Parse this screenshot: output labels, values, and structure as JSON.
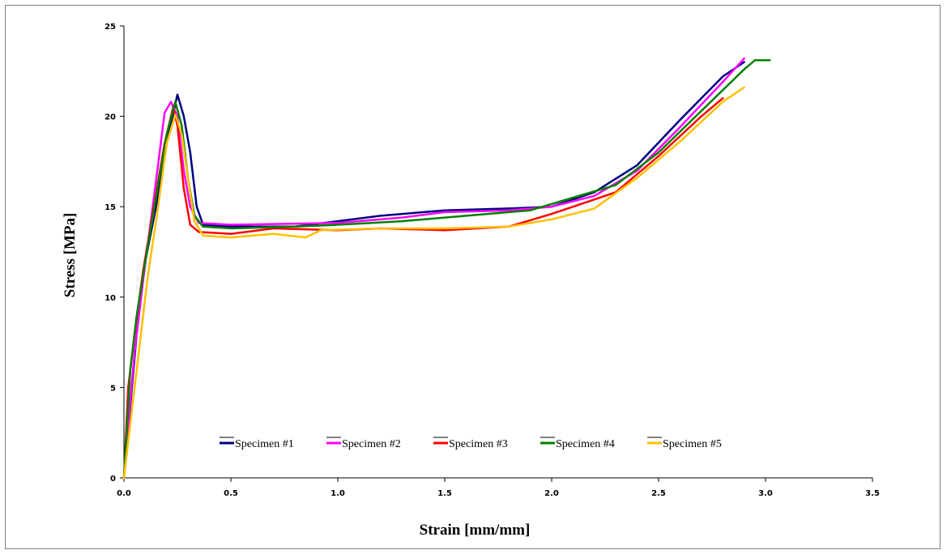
{
  "chart_data": {
    "type": "line",
    "title": "",
    "xlabel": "Strain [mm/mm]",
    "ylabel": "Stress [MPa]",
    "xlim": [
      0,
      3.5
    ],
    "ylim": [
      0,
      25
    ],
    "xticks": [
      "0.0",
      "0.5",
      "1.0",
      "1.5",
      "2.0",
      "2.5",
      "3.0",
      "3.5"
    ],
    "yticks": [
      "0",
      "5",
      "10",
      "15",
      "20",
      "25"
    ],
    "grid": false,
    "legend_position": "bottom-center",
    "series": [
      {
        "name": "Specimen #1",
        "color": "#000080",
        "points": [
          [
            0,
            0
          ],
          [
            0.03,
            4
          ],
          [
            0.06,
            8
          ],
          [
            0.1,
            12
          ],
          [
            0.15,
            15
          ],
          [
            0.2,
            18.5
          ],
          [
            0.25,
            21.2
          ],
          [
            0.28,
            20
          ],
          [
            0.31,
            18
          ],
          [
            0.34,
            15
          ],
          [
            0.37,
            14
          ],
          [
            0.5,
            13.9
          ],
          [
            0.8,
            13.9
          ],
          [
            1.0,
            14.2
          ],
          [
            1.2,
            14.5
          ],
          [
            1.5,
            14.8
          ],
          [
            1.8,
            14.9
          ],
          [
            2.0,
            15
          ],
          [
            2.2,
            15.8
          ],
          [
            2.4,
            17.3
          ],
          [
            2.6,
            19.8
          ],
          [
            2.8,
            22.2
          ],
          [
            2.9,
            23
          ]
        ]
      },
      {
        "name": "Specimen #2",
        "color": "#ff00ff",
        "points": [
          [
            0,
            0
          ],
          [
            0.02,
            3
          ],
          [
            0.05,
            7
          ],
          [
            0.09,
            11
          ],
          [
            0.14,
            15.5
          ],
          [
            0.19,
            20.2
          ],
          [
            0.22,
            20.8
          ],
          [
            0.25,
            20
          ],
          [
            0.28,
            17
          ],
          [
            0.31,
            15
          ],
          [
            0.35,
            14.1
          ],
          [
            0.5,
            14
          ],
          [
            1.0,
            14.1
          ],
          [
            1.3,
            14.4
          ],
          [
            1.5,
            14.7
          ],
          [
            1.8,
            14.8
          ],
          [
            2.0,
            15
          ],
          [
            2.2,
            15.6
          ],
          [
            2.4,
            17
          ],
          [
            2.6,
            19.4
          ],
          [
            2.8,
            21.9
          ],
          [
            2.9,
            23.2
          ]
        ]
      },
      {
        "name": "Specimen #3",
        "color": "#ff0000",
        "points": [
          [
            0,
            0
          ],
          [
            0.02,
            5
          ],
          [
            0.05,
            8
          ],
          [
            0.09,
            11.5
          ],
          [
            0.14,
            15
          ],
          [
            0.19,
            18.5
          ],
          [
            0.23,
            20.5
          ],
          [
            0.25,
            19.5
          ],
          [
            0.28,
            16
          ],
          [
            0.31,
            14
          ],
          [
            0.35,
            13.6
          ],
          [
            0.5,
            13.5
          ],
          [
            0.7,
            13.8
          ],
          [
            1.0,
            13.7
          ],
          [
            1.2,
            13.8
          ],
          [
            1.5,
            13.7
          ],
          [
            1.8,
            13.9
          ],
          [
            2.0,
            14.6
          ],
          [
            2.1,
            15
          ],
          [
            2.3,
            15.8
          ],
          [
            2.5,
            17.8
          ],
          [
            2.7,
            20
          ],
          [
            2.8,
            21
          ]
        ]
      },
      {
        "name": "Specimen #4",
        "color": "#008000",
        "points": [
          [
            0,
            0
          ],
          [
            0.03,
            6
          ],
          [
            0.06,
            9
          ],
          [
            0.1,
            12
          ],
          [
            0.15,
            15.5
          ],
          [
            0.2,
            19
          ],
          [
            0.24,
            20.8
          ],
          [
            0.27,
            19.5
          ],
          [
            0.3,
            16.5
          ],
          [
            0.33,
            14.5
          ],
          [
            0.37,
            13.9
          ],
          [
            0.5,
            13.8
          ],
          [
            0.8,
            13.9
          ],
          [
            1.0,
            14
          ],
          [
            1.3,
            14.2
          ],
          [
            1.6,
            14.5
          ],
          [
            1.9,
            14.8
          ],
          [
            2.1,
            15.5
          ],
          [
            2.3,
            16.2
          ],
          [
            2.5,
            18
          ],
          [
            2.7,
            20.3
          ],
          [
            2.9,
            22.6
          ],
          [
            2.95,
            23.1
          ],
          [
            3.02,
            23.1
          ]
        ]
      },
      {
        "name": "Specimen #5",
        "color": "#ffc000",
        "points": [
          [
            0,
            0
          ],
          [
            0.03,
            3
          ],
          [
            0.07,
            7
          ],
          [
            0.11,
            11
          ],
          [
            0.16,
            15
          ],
          [
            0.2,
            18.5
          ],
          [
            0.24,
            20.1
          ],
          [
            0.27,
            19
          ],
          [
            0.3,
            16.5
          ],
          [
            0.33,
            14.2
          ],
          [
            0.37,
            13.4
          ],
          [
            0.5,
            13.3
          ],
          [
            0.7,
            13.5
          ],
          [
            0.85,
            13.3
          ],
          [
            0.92,
            13.7
          ],
          [
            1.2,
            13.8
          ],
          [
            1.5,
            13.8
          ],
          [
            1.8,
            13.9
          ],
          [
            2.0,
            14.3
          ],
          [
            2.2,
            14.9
          ],
          [
            2.4,
            16.6
          ],
          [
            2.6,
            18.6
          ],
          [
            2.8,
            20.8
          ],
          [
            2.9,
            21.6
          ]
        ]
      }
    ]
  }
}
